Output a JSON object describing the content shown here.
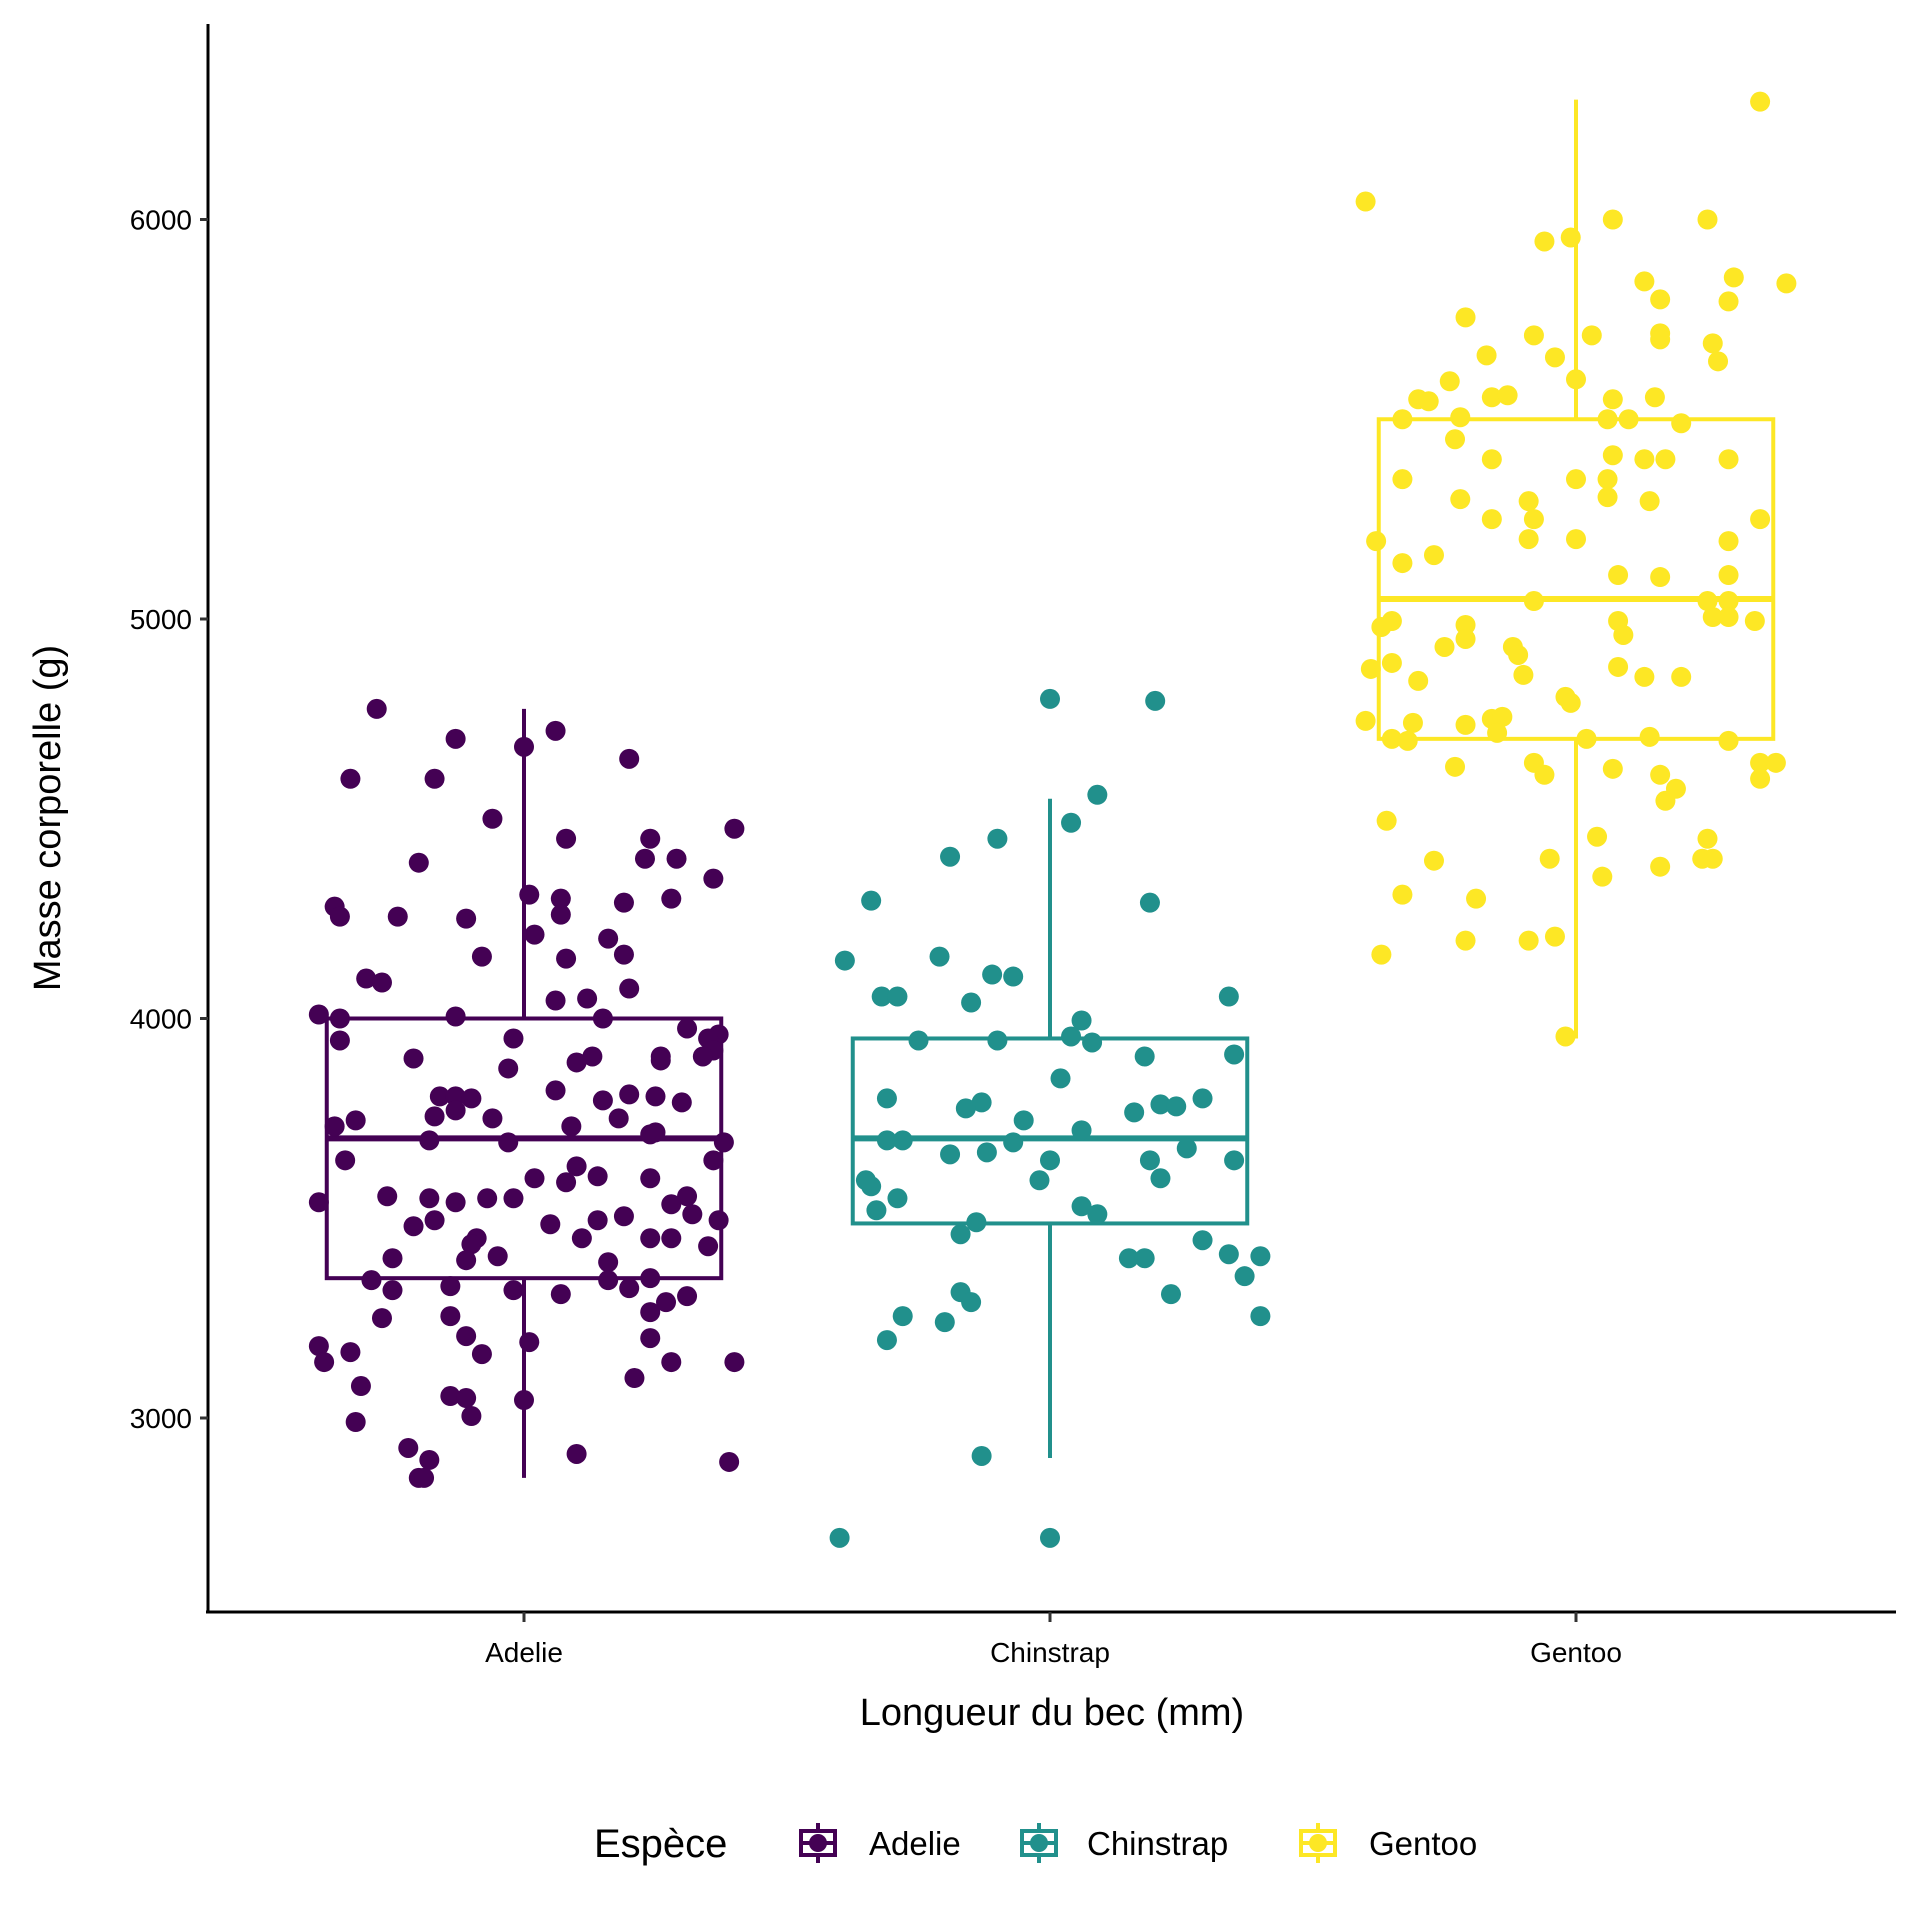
{
  "chart_data": {
    "type": "boxplot+jitter",
    "xlabel": "Longueur du bec (mm)",
    "ylabel": "Masse corporelle (g)",
    "categories": [
      "Adelie",
      "Chinstrap",
      "Gentoo"
    ],
    "ylim": [
      2520,
      6490
    ],
    "yticks": [
      3000,
      4000,
      5000,
      6000
    ],
    "grid": false,
    "legend": {
      "title": "Espèce",
      "position": "bottom",
      "entries": [
        "Adelie",
        "Chinstrap",
        "Gentoo"
      ]
    },
    "colors": {
      "Adelie": "#440154",
      "Chinstrap": "#21908C",
      "Gentoo": "#FDE725"
    },
    "boxes": [
      {
        "name": "Adelie",
        "whisker_low": 2850,
        "q1": 3350,
        "median": 3700,
        "q3": 4000,
        "whisker_high": 4775
      },
      {
        "name": "Chinstrap",
        "whisker_low": 2900,
        "q1": 3487,
        "median": 3700,
        "q3": 3950,
        "whisker_high": 4550
      },
      {
        "name": "Gentoo",
        "whisker_low": 3950,
        "q1": 4700,
        "median": 5050,
        "q3": 5500,
        "whisker_high": 6300
      }
    ],
    "points_note": "each point = [jitter offset in category units, body mass g]",
    "points": {
      "Adelie": [
        [
          -0.28,
          4775
        ],
        [
          -0.13,
          4700
        ],
        [
          0.06,
          4720
        ],
        [
          0,
          4680
        ],
        [
          -0.17,
          4600
        ],
        [
          -0.33,
          4600
        ],
        [
          0.2,
          4650
        ],
        [
          -0.06,
          4500
        ],
        [
          0.4,
          4475
        ],
        [
          0.08,
          4450
        ],
        [
          0.24,
          4450
        ],
        [
          0.23,
          4400
        ],
        [
          0.29,
          4400
        ],
        [
          -0.2,
          4390
        ],
        [
          0.36,
          4350
        ],
        [
          0.01,
          4310
        ],
        [
          0.07,
          4300
        ],
        [
          0.19,
          4290
        ],
        [
          0.28,
          4300
        ],
        [
          -0.36,
          4280
        ],
        [
          -0.35,
          4255
        ],
        [
          -0.24,
          4255
        ],
        [
          -0.11,
          4250
        ],
        [
          0.07,
          4260
        ],
        [
          0.02,
          4210
        ],
        [
          0.16,
          4200
        ],
        [
          0.19,
          4160
        ],
        [
          -0.08,
          4155
        ],
        [
          0.08,
          4150
        ],
        [
          -0.3,
          4100
        ],
        [
          -0.27,
          4090
        ],
        [
          0.2,
          4075
        ],
        [
          0.06,
          4045
        ],
        [
          0.12,
          4050
        ],
        [
          -0.39,
          4010
        ],
        [
          -0.35,
          4000
        ],
        [
          -0.13,
          4005
        ],
        [
          0.15,
          4000
        ],
        [
          0.31,
          3975
        ],
        [
          0.37,
          3960
        ],
        [
          0.35,
          3950
        ],
        [
          -0.02,
          3950
        ],
        [
          -0.35,
          3945
        ],
        [
          0.36,
          3920
        ],
        [
          0.13,
          3905
        ],
        [
          0.34,
          3905
        ],
        [
          0.26,
          3905
        ],
        [
          -0.21,
          3900
        ],
        [
          0.1,
          3890
        ],
        [
          0.26,
          3895
        ],
        [
          -0.03,
          3875
        ],
        [
          0.06,
          3820
        ],
        [
          -0.16,
          3805
        ],
        [
          -0.13,
          3805
        ],
        [
          -0.1,
          3800
        ],
        [
          0.2,
          3810
        ],
        [
          0.25,
          3805
        ],
        [
          0.15,
          3795
        ],
        [
          0.3,
          3790
        ],
        [
          -0.17,
          3755
        ],
        [
          -0.13,
          3770
        ],
        [
          -0.06,
          3750
        ],
        [
          0.18,
          3750
        ],
        [
          -0.32,
          3745
        ],
        [
          -0.36,
          3730
        ],
        [
          0.09,
          3730
        ],
        [
          0.24,
          3710
        ],
        [
          0.25,
          3715
        ],
        [
          -0.18,
          3695
        ],
        [
          -0.03,
          3690
        ],
        [
          0.38,
          3690
        ],
        [
          0.36,
          3645
        ],
        [
          -0.34,
          3645
        ],
        [
          0.1,
          3630
        ],
        [
          0.02,
          3600
        ],
        [
          0.08,
          3590
        ],
        [
          0.14,
          3605
        ],
        [
          0.24,
          3600
        ],
        [
          0.31,
          3555
        ],
        [
          -0.26,
          3555
        ],
        [
          -0.18,
          3550
        ],
        [
          -0.07,
          3550
        ],
        [
          -0.02,
          3550
        ],
        [
          -0.13,
          3540
        ],
        [
          -0.39,
          3540
        ],
        [
          0.28,
          3535
        ],
        [
          0.32,
          3510
        ],
        [
          0.19,
          3505
        ],
        [
          -0.17,
          3495
        ],
        [
          -0.21,
          3480
        ],
        [
          0.14,
          3495
        ],
        [
          0.05,
          3485
        ],
        [
          0.37,
          3495
        ],
        [
          0.11,
          3450
        ],
        [
          0.24,
          3450
        ],
        [
          0.28,
          3450
        ],
        [
          -0.09,
          3450
        ],
        [
          -0.1,
          3435
        ],
        [
          0.35,
          3430
        ],
        [
          -0.05,
          3405
        ],
        [
          -0.11,
          3395
        ],
        [
          -0.25,
          3400
        ],
        [
          0.16,
          3390
        ],
        [
          0.24,
          3350
        ],
        [
          -0.29,
          3345
        ],
        [
          0.16,
          3345
        ],
        [
          -0.25,
          3320
        ],
        [
          -0.14,
          3330
        ],
        [
          -0.02,
          3320
        ],
        [
          0.07,
          3310
        ],
        [
          0.2,
          3325
        ],
        [
          0.31,
          3305
        ],
        [
          0.27,
          3290
        ],
        [
          0.24,
          3265
        ],
        [
          -0.14,
          3255
        ],
        [
          -0.27,
          3250
        ],
        [
          -0.11,
          3205
        ],
        [
          0.24,
          3200
        ],
        [
          -0.39,
          3180
        ],
        [
          -0.33,
          3165
        ],
        [
          -0.08,
          3160
        ],
        [
          -0.38,
          3140
        ],
        [
          0.01,
          3190
        ],
        [
          0.28,
          3140
        ],
        [
          0.4,
          3140
        ],
        [
          0.21,
          3100
        ],
        [
          -0.31,
          3080
        ],
        [
          -0.14,
          3055
        ],
        [
          -0.11,
          3050
        ],
        [
          0,
          3045
        ],
        [
          -0.1,
          3005
        ],
        [
          -0.32,
          2990
        ],
        [
          -0.22,
          2925
        ],
        [
          0.1,
          2910
        ],
        [
          -0.18,
          2895
        ],
        [
          0.39,
          2890
        ],
        [
          -0.2,
          2850
        ],
        [
          -0.19,
          2850
        ]
      ],
      "Chinstrap": [
        [
          0,
          4800
        ],
        [
          0.2,
          4795
        ],
        [
          0.09,
          4560
        ],
        [
          0.04,
          4490
        ],
        [
          -0.1,
          4450
        ],
        [
          -0.19,
          4405
        ],
        [
          -0.34,
          4295
        ],
        [
          0.19,
          4290
        ],
        [
          -0.21,
          4155
        ],
        [
          -0.39,
          4145
        ],
        [
          -0.11,
          4110
        ],
        [
          -0.07,
          4105
        ],
        [
          -0.32,
          4055
        ],
        [
          -0.29,
          4055
        ],
        [
          0.34,
          4055
        ],
        [
          -0.15,
          4040
        ],
        [
          0.06,
          3995
        ],
        [
          0.04,
          3955
        ],
        [
          0.08,
          3940
        ],
        [
          -0.1,
          3945
        ],
        [
          -0.25,
          3945
        ],
        [
          0.18,
          3905
        ],
        [
          0.35,
          3910
        ],
        [
          0.02,
          3850
        ],
        [
          -0.31,
          3800
        ],
        [
          0.29,
          3800
        ],
        [
          -0.13,
          3790
        ],
        [
          0.21,
          3785
        ],
        [
          0.24,
          3780
        ],
        [
          -0.16,
          3775
        ],
        [
          0.16,
          3765
        ],
        [
          -0.05,
          3745
        ],
        [
          0.06,
          3720
        ],
        [
          -0.31,
          3695
        ],
        [
          -0.28,
          3695
        ],
        [
          -0.07,
          3690
        ],
        [
          0.26,
          3675
        ],
        [
          -0.19,
          3660
        ],
        [
          -0.12,
          3665
        ],
        [
          0,
          3645
        ],
        [
          0.19,
          3645
        ],
        [
          0.35,
          3645
        ],
        [
          0.21,
          3600
        ],
        [
          -0.35,
          3595
        ],
        [
          -0.02,
          3595
        ],
        [
          -0.34,
          3580
        ],
        [
          -0.29,
          3550
        ],
        [
          0.06,
          3530
        ],
        [
          0.09,
          3510
        ],
        [
          -0.33,
          3520
        ],
        [
          -0.14,
          3490
        ],
        [
          -0.17,
          3460
        ],
        [
          0.29,
          3445
        ],
        [
          0.15,
          3400
        ],
        [
          0.18,
          3400
        ],
        [
          0.34,
          3410
        ],
        [
          0.4,
          3405
        ],
        [
          0.37,
          3355
        ],
        [
          -0.17,
          3315
        ],
        [
          -0.15,
          3290
        ],
        [
          0.23,
          3310
        ],
        [
          -0.28,
          3255
        ],
        [
          0.4,
          3255
        ],
        [
          -0.2,
          3240
        ],
        [
          -0.31,
          3195
        ],
        [
          -0.13,
          2905
        ],
        [
          -0.4,
          2700
        ],
        [
          0,
          2700
        ]
      ],
      "Gentoo": [
        [
          0.35,
          6295
        ],
        [
          -0.4,
          6045
        ],
        [
          0.07,
          6000
        ],
        [
          0.25,
          6000
        ],
        [
          -0.01,
          5955
        ],
        [
          -0.06,
          5945
        ],
        [
          0.13,
          5845
        ],
        [
          0.4,
          5840
        ],
        [
          0.3,
          5855
        ],
        [
          0.16,
          5800
        ],
        [
          0.29,
          5795
        ],
        [
          -0.21,
          5755
        ],
        [
          -0.08,
          5710
        ],
        [
          0.03,
          5710
        ],
        [
          0.16,
          5715
        ],
        [
          0.16,
          5700
        ],
        [
          0.26,
          5690
        ],
        [
          -0.17,
          5660
        ],
        [
          -0.04,
          5655
        ],
        [
          0.27,
          5645
        ],
        [
          0,
          5600
        ],
        [
          -0.24,
          5595
        ],
        [
          0.15,
          5555
        ],
        [
          -0.3,
          5550
        ],
        [
          -0.28,
          5545
        ],
        [
          -0.16,
          5555
        ],
        [
          -0.13,
          5560
        ],
        [
          0.07,
          5550
        ],
        [
          -0.33,
          5500
        ],
        [
          -0.22,
          5505
        ],
        [
          0.06,
          5500
        ],
        [
          0.1,
          5500
        ],
        [
          0.2,
          5490
        ],
        [
          -0.23,
          5450
        ],
        [
          0.07,
          5410
        ],
        [
          0.13,
          5400
        ],
        [
          0.17,
          5400
        ],
        [
          0.29,
          5400
        ],
        [
          -0.16,
          5400
        ],
        [
          -0.33,
          5350
        ],
        [
          0,
          5350
        ],
        [
          0.06,
          5350
        ],
        [
          -0.22,
          5300
        ],
        [
          0.06,
          5305
        ],
        [
          -0.09,
          5295
        ],
        [
          0.14,
          5295
        ],
        [
          -0.16,
          5250
        ],
        [
          -0.08,
          5250
        ],
        [
          0.35,
          5250
        ],
        [
          -0.38,
          5195
        ],
        [
          -0.09,
          5200
        ],
        [
          0,
          5200
        ],
        [
          0.29,
          5195
        ],
        [
          -0.27,
          5160
        ],
        [
          -0.33,
          5140
        ],
        [
          0.08,
          5110
        ],
        [
          0.16,
          5105
        ],
        [
          0.29,
          5110
        ],
        [
          -0.08,
          5045
        ],
        [
          0.25,
          5045
        ],
        [
          0.29,
          5045
        ],
        [
          0.29,
          5005
        ],
        [
          0.26,
          5005
        ],
        [
          0.34,
          4995
        ],
        [
          0.08,
          4995
        ],
        [
          -0.21,
          4985
        ],
        [
          -0.35,
          4995
        ],
        [
          -0.37,
          4980
        ],
        [
          0.09,
          4960
        ],
        [
          -0.21,
          4950
        ],
        [
          -0.25,
          4930
        ],
        [
          -0.12,
          4930
        ],
        [
          -0.11,
          4910
        ],
        [
          -0.39,
          4875
        ],
        [
          -0.35,
          4890
        ],
        [
          0.08,
          4880
        ],
        [
          0.13,
          4855
        ],
        [
          0.2,
          4855
        ],
        [
          -0.1,
          4860
        ],
        [
          -0.3,
          4845
        ],
        [
          -0.02,
          4805
        ],
        [
          -0.01,
          4790
        ],
        [
          -0.4,
          4745
        ],
        [
          -0.31,
          4740
        ],
        [
          -0.16,
          4750
        ],
        [
          -0.14,
          4755
        ],
        [
          -0.21,
          4735
        ],
        [
          -0.15,
          4715
        ],
        [
          -0.35,
          4700
        ],
        [
          -0.32,
          4695
        ],
        [
          0.02,
          4700
        ],
        [
          0.14,
          4705
        ],
        [
          0.29,
          4695
        ],
        [
          -0.08,
          4640
        ],
        [
          0.35,
          4640
        ],
        [
          0.38,
          4640
        ],
        [
          -0.23,
          4630
        ],
        [
          0.07,
          4625
        ],
        [
          -0.06,
          4610
        ],
        [
          0.16,
          4610
        ],
        [
          0.35,
          4600
        ],
        [
          0.19,
          4575
        ],
        [
          0.17,
          4545
        ],
        [
          -0.36,
          4495
        ],
        [
          0.04,
          4455
        ],
        [
          0.25,
          4450
        ],
        [
          -0.05,
          4400
        ],
        [
          -0.27,
          4395
        ],
        [
          0.24,
          4400
        ],
        [
          0.26,
          4400
        ],
        [
          0.16,
          4380
        ],
        [
          0.05,
          4355
        ],
        [
          -0.33,
          4310
        ],
        [
          -0.19,
          4300
        ],
        [
          -0.21,
          4195
        ],
        [
          -0.09,
          4195
        ],
        [
          -0.04,
          4205
        ],
        [
          -0.37,
          4160
        ],
        [
          -0.02,
          3955
        ]
      ]
    }
  }
}
